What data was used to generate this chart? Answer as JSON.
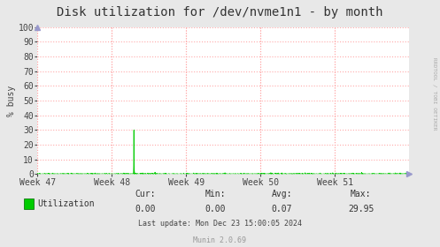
{
  "title": "Disk utilization for /dev/nvme1n1 - by month",
  "ylabel": "% busy",
  "bg_color": "#e8e8e8",
  "plot_bg_color": "#ffffff",
  "grid_color": "#ffaaaa",
  "line_color": "#00cc00",
  "fill_color": "#00cc00",
  "yticks": [
    0,
    10,
    20,
    30,
    40,
    50,
    60,
    70,
    80,
    90,
    100
  ],
  "ylim": [
    0,
    100
  ],
  "xtick_labels": [
    "Week 47",
    "Week 48",
    "Week 49",
    "Week 50",
    "Week 51"
  ],
  "legend_label": "Utilization",
  "legend_color": "#00cc00",
  "cur_val": "0.00",
  "min_val": "0.00",
  "avg_val": "0.07",
  "max_val": "29.95",
  "footer": "Last update: Mon Dec 23 15:00:05 2024",
  "munin_version": "Munin 2.0.69",
  "rrdtool_label": "RRDTOOL / TOBI OETIKER",
  "title_fontsize": 10,
  "axis_label_fontsize": 7,
  "tick_fontsize": 7,
  "legend_fontsize": 7,
  "footer_fontsize": 6
}
